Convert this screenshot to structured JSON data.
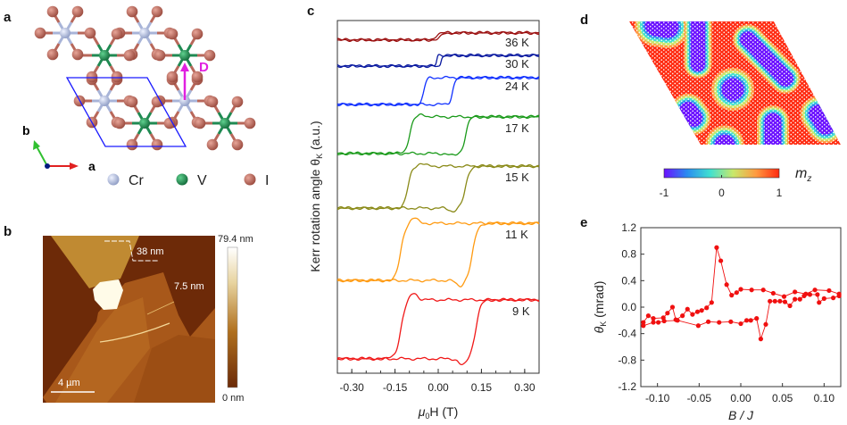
{
  "panels": {
    "a": "a",
    "b": "b",
    "c": "c",
    "d": "d",
    "e": "e"
  },
  "structure": {
    "axis_labels": {
      "a": "a",
      "b": "b"
    },
    "dmi_label": "D",
    "legend": [
      {
        "label": "Cr",
        "color": "#b4bfdc"
      },
      {
        "label": "V",
        "color": "#1f8a52"
      },
      {
        "label": "I",
        "color": "#c0675a"
      }
    ],
    "colors": {
      "unit_cell": "#1a1aff",
      "dmi_arrow": "#e020e0",
      "axis_a": "#e02020",
      "axis_b": "#30c030"
    }
  },
  "afm": {
    "scale_max": "79.4 nm",
    "scale_min": "0 nm",
    "step_thick": "38 nm",
    "step_thin": "7.5 nm",
    "scale_bar": "4 µm"
  },
  "spin_map": {
    "colorbar_ticks": [
      "-1",
      "0",
      "1"
    ],
    "label_main": "m",
    "label_sub": "z",
    "colormap": [
      "#6a10ff",
      "#2a8cf0",
      "#40e0d0",
      "#c8e86a",
      "#ff9a40",
      "#ff2a10"
    ]
  },
  "chart_data": [
    {
      "panel": "c",
      "type": "line",
      "xlabel": {
        "main": "μ",
        "sub": "0",
        "rest": "H (T)"
      },
      "ylabel": {
        "main": "Kerr rotation angle  θ",
        "sub": "K",
        "rest": " (a.u.)"
      },
      "xlim": [
        -0.35,
        0.35
      ],
      "ylim": [
        0,
        100
      ],
      "xticks": [
        -0.3,
        -0.15,
        0.0,
        0.15,
        0.3
      ],
      "xtick_labels": [
        "-0.30",
        "-0.15",
        "0.00",
        "0.15",
        "0.30"
      ],
      "series": [
        {
          "name": "36 K",
          "color": "#9b1010",
          "lower": 94.5,
          "upper": 96.5,
          "switch_down": -0.01,
          "switch_up": 0.01,
          "width": 0.01,
          "overshoot": 0
        },
        {
          "name": "30 K",
          "color": "#0a1aa0",
          "lower": 87.1,
          "upper": 90.1,
          "switch_down": -0.005,
          "switch_up": 0.01,
          "width": 0.004,
          "overshoot": 0
        },
        {
          "name": "24 K",
          "color": "#1030ff",
          "lower": 76.2,
          "upper": 83.8,
          "switch_down": -0.05,
          "switch_up": 0.05,
          "width": 0.01,
          "overshoot": 0
        },
        {
          "name": "17 K",
          "color": "#1a9a1a",
          "lower": 62.3,
          "upper": 72.7,
          "switch_down": -0.1,
          "switch_up": 0.095,
          "width": 0.014,
          "overshoot": 0.06
        },
        {
          "name": "15 K",
          "color": "#8a8a18",
          "lower": 46.8,
          "upper": 58.7,
          "switch_down": -0.105,
          "switch_up": 0.095,
          "width": 0.015,
          "overshoot": 0.07
        },
        {
          "name": "11 K",
          "color": "#ff9a10",
          "lower": 26.3,
          "upper": 42.5,
          "switch_down": -0.13,
          "switch_up": 0.12,
          "width": 0.017,
          "overshoot": 0.1
        },
        {
          "name": "9 K",
          "color": "#f01818",
          "lower": 4.1,
          "upper": 20.8,
          "switch_down": -0.13,
          "switch_up": 0.13,
          "width": 0.018,
          "overshoot": 0.12
        }
      ]
    },
    {
      "panel": "e",
      "type": "line",
      "xlabel": "B / J",
      "ylabel": {
        "main": "θ",
        "sub": "K",
        "rest": " (mrad)"
      },
      "xlim": [
        -0.12,
        0.12
      ],
      "ylim": [
        -1.2,
        1.2
      ],
      "xticks": [
        -0.1,
        -0.05,
        0.0,
        0.05,
        0.1
      ],
      "xtick_labels": [
        "-0.10",
        "-0.05",
        "0.00",
        "0.05",
        "0.10"
      ],
      "yticks": [
        1.2,
        0.8,
        0.4,
        0.0,
        -0.4,
        -0.8,
        -1.2
      ],
      "ytick_labels": [
        "1.2",
        "0.8",
        "0.4",
        "0.0",
        "-0.4",
        "-0.8",
        "-1.2"
      ],
      "color": "#f01010",
      "series": [
        {
          "x": [
            -0.117,
            -0.111,
            -0.105,
            -0.093,
            -0.088,
            -0.082,
            -0.078,
            -0.07,
            -0.064,
            -0.058,
            -0.052,
            -0.047,
            -0.041,
            -0.035,
            -0.029,
            -0.024,
            -0.017,
            -0.011,
            -0.005,
            0.0,
            0.013,
            0.027,
            0.039,
            0.052,
            0.065,
            0.078,
            0.089,
            0.106,
            0.118
          ],
          "y": [
            -0.23,
            -0.13,
            -0.17,
            -0.16,
            -0.09,
            0.0,
            -0.19,
            -0.13,
            -0.03,
            -0.11,
            -0.07,
            -0.05,
            -0.01,
            0.07,
            0.9,
            0.7,
            0.34,
            0.18,
            0.22,
            0.27,
            0.26,
            0.26,
            0.21,
            0.16,
            0.23,
            0.2,
            0.26,
            0.25,
            0.2
          ]
        },
        {
          "x": [
            -0.117,
            -0.105,
            -0.099,
            -0.092,
            -0.076,
            -0.051,
            -0.039,
            -0.026,
            -0.012,
            0.0,
            0.007,
            0.012,
            0.019,
            0.024,
            0.03,
            0.035,
            0.041,
            0.047,
            0.053,
            0.059,
            0.065,
            0.071,
            0.076,
            0.083,
            0.092,
            0.094,
            0.1,
            0.111,
            0.118
          ],
          "y": [
            -0.28,
            -0.23,
            -0.23,
            -0.21,
            -0.2,
            -0.28,
            -0.22,
            -0.23,
            -0.22,
            -0.25,
            -0.2,
            -0.2,
            -0.17,
            -0.48,
            -0.26,
            0.09,
            0.09,
            0.09,
            0.08,
            0.02,
            0.12,
            0.12,
            0.17,
            0.19,
            0.19,
            0.07,
            0.13,
            0.14,
            0.17
          ]
        }
      ]
    }
  ]
}
